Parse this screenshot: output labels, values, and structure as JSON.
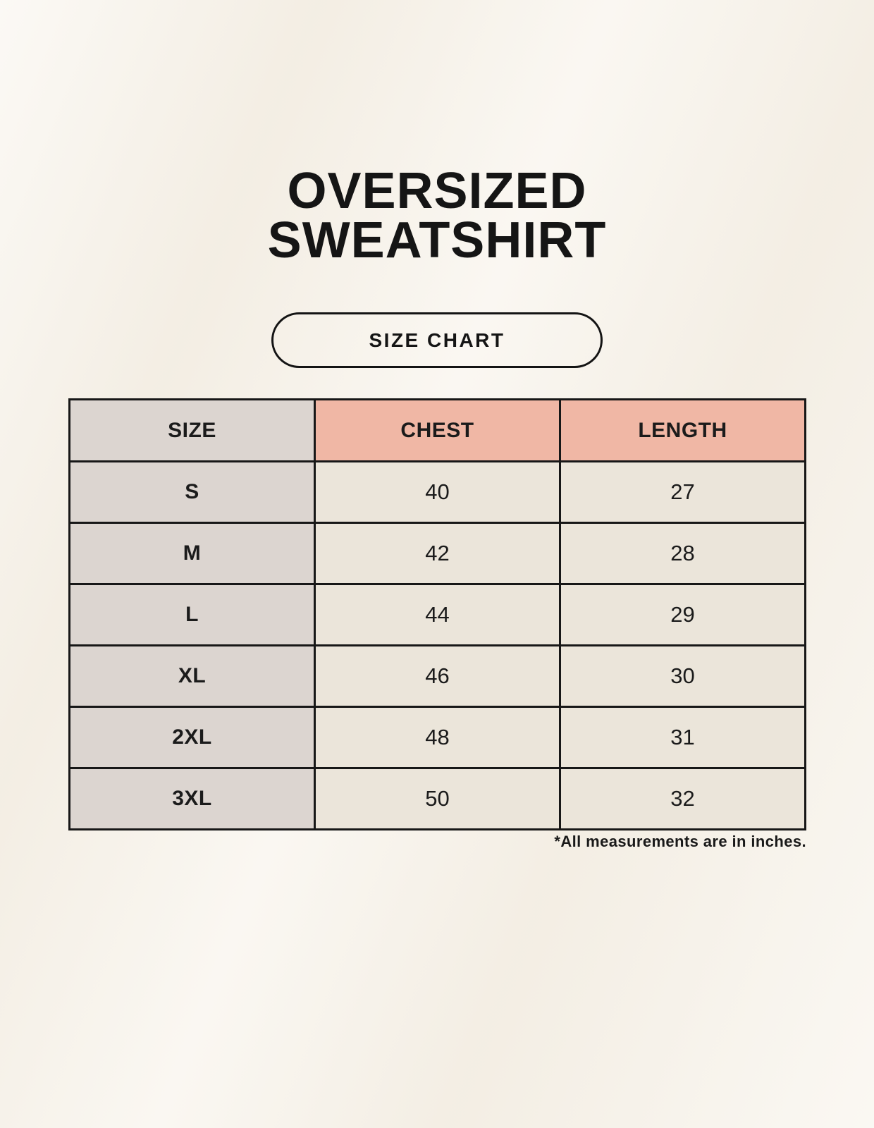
{
  "page": {
    "title_line1": "OVERSIZED",
    "title_line2": "SWEATSHIRT",
    "badge_label": "SIZE CHART",
    "footnote": "*All measurements are in inches."
  },
  "colors": {
    "page_background": "#F7F2E9",
    "header_accent": "#F0B7A5",
    "size_column": "#DCD5D0",
    "cell_background": "#EBE5DA",
    "table_border": "#171717",
    "text": "#1B1B1B"
  },
  "chart_data": {
    "type": "table",
    "title": "OVERSIZED SWEATSHIRT",
    "subtitle": "SIZE CHART",
    "columns": [
      "SIZE",
      "CHEST",
      "LENGTH"
    ],
    "rows": [
      {
        "size": "S",
        "chest": "40",
        "length": "27"
      },
      {
        "size": "M",
        "chest": "42",
        "length": "28"
      },
      {
        "size": "L",
        "chest": "44",
        "length": "29"
      },
      {
        "size": "XL",
        "chest": "46",
        "length": "30"
      },
      {
        "size": "2XL",
        "chest": "48",
        "length": "31"
      },
      {
        "size": "3XL",
        "chest": "50",
        "length": "32"
      }
    ],
    "units": "inches",
    "footnote": "*All measurements are in inches."
  }
}
